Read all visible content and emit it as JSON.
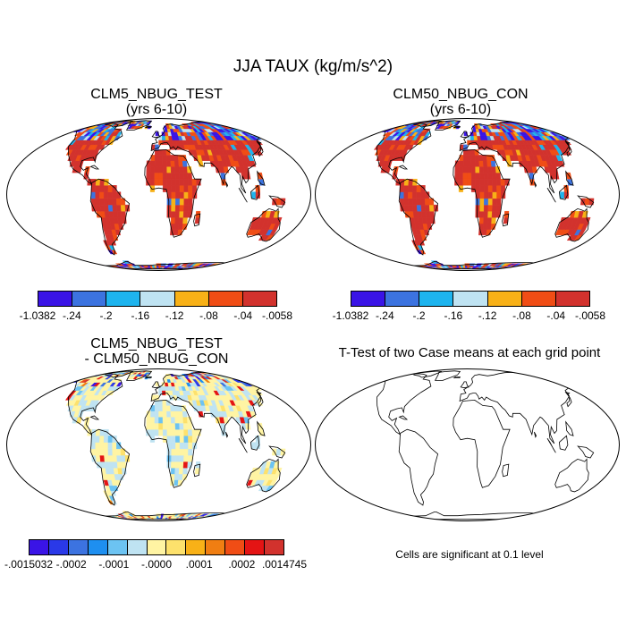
{
  "main_title": "JJA TAUX (kg/m/s^2)",
  "panels": [
    {
      "title_line1": "CLM5_NBUG_TEST",
      "title_line2": "(yrs 6-10)",
      "colorbar": {
        "colors": [
          "#3a14e6",
          "#3c73e0",
          "#1eb4ee",
          "#bfe3f2",
          "#f8b117",
          "#f04d15",
          "#d2322d"
        ],
        "labels": [
          "-1.0382",
          "-.24",
          "-.2",
          "-.16",
          "-.12",
          "-.08",
          "-.04",
          "-.0058"
        ]
      }
    },
    {
      "title_line1": "CLM50_NBUG_CON",
      "title_line2": "(yrs 6-10)",
      "colorbar": {
        "colors": [
          "#3a14e6",
          "#3c73e0",
          "#1eb4ee",
          "#bfe3f2",
          "#f8b117",
          "#f04d15",
          "#d2322d"
        ],
        "labels": [
          "-1.0382",
          "-.24",
          "-.2",
          "-.16",
          "-.12",
          "-.08",
          "-.04",
          "-.0058"
        ]
      }
    },
    {
      "title_line1": "CLM5_NBUG_TEST",
      "title_line2": "- CLM50_NBUG_CON",
      "colorbar": {
        "colors": [
          "#3a14e6",
          "#2a39e8",
          "#3c73e0",
          "#1e8ff0",
          "#6cc3f2",
          "#bfe3f2",
          "#fff4a3",
          "#fde16c",
          "#f8b117",
          "#f07e12",
          "#f04d15",
          "#e41414",
          "#d2322d"
        ],
        "labels": [
          "-.0015032",
          "-.0002",
          "-.0001",
          "-.0000",
          ".0001",
          ".0002",
          ".0014745"
        ]
      }
    },
    {
      "title": "T-Test of two Case means at each grid point",
      "note": "Cells are significant at 0.1 level"
    }
  ]
}
